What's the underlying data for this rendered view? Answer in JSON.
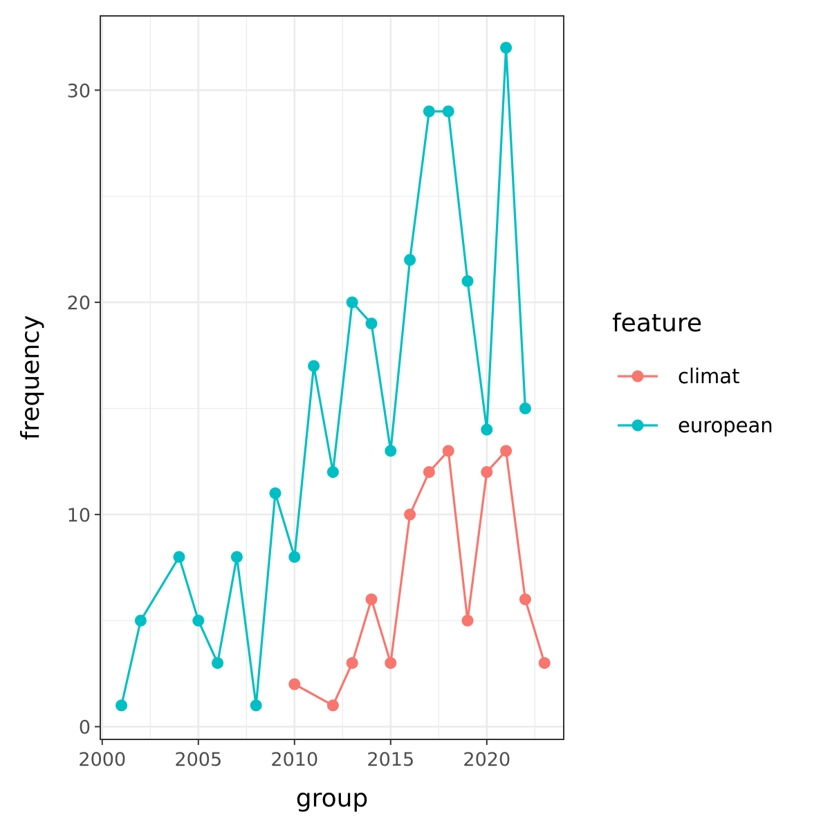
{
  "chart_data": {
    "type": "line",
    "xlabel": "group",
    "ylabel": "frequency",
    "xlim": [
      2000,
      2024
    ],
    "ylim": [
      0,
      33
    ],
    "x_ticks": [
      2000,
      2005,
      2010,
      2015,
      2020
    ],
    "y_ticks": [
      0,
      10,
      20,
      30
    ],
    "grid": true,
    "legend": {
      "title": "feature",
      "position": "right"
    },
    "series": [
      {
        "name": "climat",
        "color": "#F8766D",
        "x": [
          2010,
          2012,
          2013,
          2014,
          2015,
          2016,
          2017,
          2018,
          2019,
          2020,
          2021,
          2022,
          2023
        ],
        "y": [
          2,
          1,
          3,
          6,
          3,
          10,
          12,
          13,
          5,
          12,
          13,
          6,
          3
        ]
      },
      {
        "name": "european",
        "color": "#00BFC4",
        "x": [
          2001,
          2002,
          2004,
          2005,
          2006,
          2007,
          2008,
          2009,
          2010,
          2011,
          2012,
          2013,
          2014,
          2015,
          2016,
          2017,
          2018,
          2019,
          2020,
          2021,
          2022
        ],
        "y": [
          1,
          5,
          8,
          5,
          3,
          8,
          1,
          11,
          8,
          17,
          12,
          20,
          19,
          13,
          22,
          29,
          29,
          21,
          14,
          32,
          15
        ]
      }
    ]
  }
}
